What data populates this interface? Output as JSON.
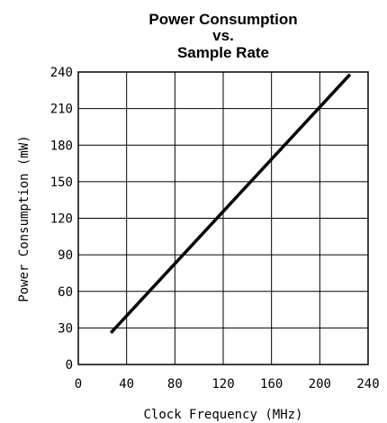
{
  "chart_data": {
    "type": "line",
    "title_lines": [
      "Power Consumption",
      "vs.",
      "Sample Rate"
    ],
    "xlabel": "Clock Frequency (MHz)",
    "ylabel": "Power Consumption (mW)",
    "xlim": [
      0,
      240
    ],
    "ylim": [
      0,
      240
    ],
    "xticks": [
      "0",
      "40",
      "80",
      "120",
      "160",
      "200",
      "240"
    ],
    "yticks": [
      "0",
      "30",
      "60",
      "90",
      "120",
      "150",
      "180",
      "210",
      "240"
    ],
    "grid": true,
    "series": [
      {
        "x": [
          27,
          225
        ],
        "y": [
          26,
          238
        ]
      }
    ],
    "line_color": "#000000"
  }
}
